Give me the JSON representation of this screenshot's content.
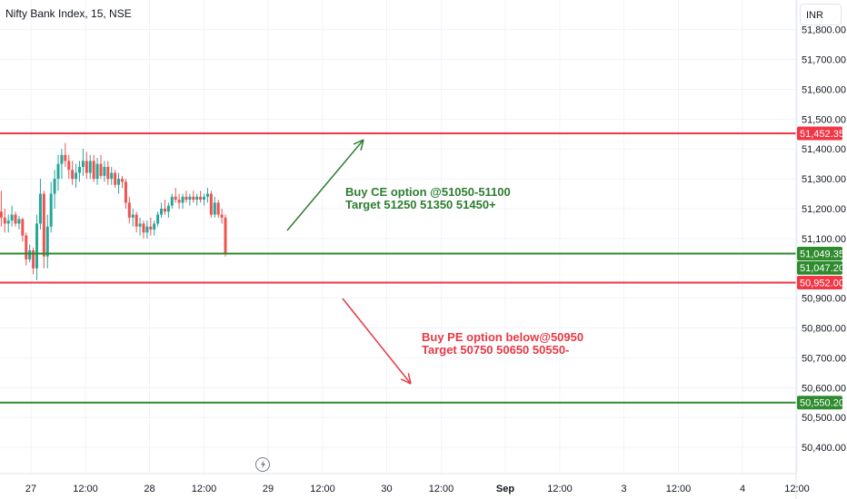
{
  "header": {
    "symbol_title": "Nifty Bank Index, 15, NSE"
  },
  "currency_button": {
    "label": "INR"
  },
  "colors": {
    "up": "#26a69a",
    "down": "#ef5350",
    "resistance": "#f23645",
    "support": "#2e8b2e",
    "grid": "#f0f3fa"
  },
  "chart_data": {
    "type": "candlestick",
    "y_ticks": [
      "51,800.00",
      "51,700.00",
      "51,600.00",
      "51,500.00",
      "51,400.00",
      "51,300.00",
      "51,200.00",
      "51,100.00",
      "50,900.00",
      "50,800.00",
      "50,700.00",
      "50,600.00",
      "50,500.00",
      "50,400.00"
    ],
    "y_tick_values": [
      51800,
      51700,
      51600,
      51500,
      51400,
      51300,
      51200,
      51100,
      50900,
      50800,
      50700,
      50600,
      50500,
      50400
    ],
    "x_ticks": [
      {
        "label": "27",
        "t": 0.0
      },
      {
        "label": "12:00",
        "t": 0.46
      },
      {
        "label": "28",
        "t": 1.0
      },
      {
        "label": "12:00",
        "t": 1.46
      },
      {
        "label": "29",
        "t": 2.0
      },
      {
        "label": "12:00",
        "t": 2.46
      },
      {
        "label": "30",
        "t": 3.0
      },
      {
        "label": "12:00",
        "t": 3.46
      },
      {
        "label": "Sep",
        "t": 4.0
      },
      {
        "label": "12:00",
        "t": 4.46
      },
      {
        "label": "3",
        "t": 5.0
      },
      {
        "label": "12:00",
        "t": 5.46
      },
      {
        "label": "4",
        "t": 6.0
      },
      {
        "label": "12:00",
        "t": 6.46
      }
    ],
    "ylim": [
      50340,
      51860
    ],
    "levels": [
      {
        "value": 51452.35,
        "label": "51,452.35",
        "kind": "resistance"
      },
      {
        "value": 51049.35,
        "label": "51,049.35",
        "kind": "support"
      },
      {
        "value": 51047.2,
        "label": "51,047.20",
        "kind": "last"
      },
      {
        "value": 50952.0,
        "label": "50,952.00",
        "kind": "resistance"
      },
      {
        "value": 50550.2,
        "label": "50,550.20",
        "kind": "support"
      }
    ],
    "candles": [
      [
        -0.25,
        51190,
        51260,
        51140,
        51170
      ],
      [
        -0.22,
        51170,
        51200,
        51120,
        51150
      ],
      [
        -0.19,
        51150,
        51180,
        51120,
        51160
      ],
      [
        -0.16,
        51160,
        51210,
        51140,
        51180
      ],
      [
        -0.13,
        51180,
        51190,
        51140,
        51150
      ],
      [
        -0.1,
        51150,
        51175,
        51130,
        51165
      ],
      [
        -0.07,
        51165,
        51170,
        51090,
        51110
      ],
      [
        -0.04,
        51110,
        51120,
        51010,
        51030
      ],
      [
        -0.01,
        51030,
        51080,
        51020,
        51060
      ],
      [
        0.02,
        51060,
        51070,
        50980,
        51000
      ],
      [
        0.05,
        51000,
        51180,
        50960,
        51150
      ],
      [
        0.08,
        51150,
        51300,
        51130,
        51250
      ],
      [
        0.11,
        51250,
        51260,
        51000,
        51040
      ],
      [
        0.14,
        51040,
        51180,
        51000,
        51140
      ],
      [
        0.17,
        51140,
        51290,
        51120,
        51250
      ],
      [
        0.2,
        51250,
        51330,
        51200,
        51300
      ],
      [
        0.23,
        51300,
        51380,
        51260,
        51350
      ],
      [
        0.26,
        51350,
        51400,
        51300,
        51380
      ],
      [
        0.29,
        51380,
        51420,
        51340,
        51360
      ],
      [
        0.32,
        51360,
        51380,
        51300,
        51330
      ],
      [
        0.35,
        51330,
        51360,
        51280,
        51300
      ],
      [
        0.38,
        51300,
        51350,
        51270,
        51320
      ],
      [
        0.41,
        51320,
        51360,
        51290,
        51340
      ],
      [
        0.44,
        51340,
        51400,
        51310,
        51360
      ],
      [
        0.47,
        51360,
        51390,
        51300,
        51320
      ],
      [
        0.5,
        51320,
        51380,
        51300,
        51360
      ],
      [
        0.53,
        51360,
        51380,
        51290,
        51300
      ],
      [
        0.56,
        51300,
        51370,
        51280,
        51350
      ],
      [
        0.59,
        51350,
        51380,
        51300,
        51310
      ],
      [
        0.62,
        51310,
        51360,
        51290,
        51340
      ],
      [
        0.65,
        51340,
        51360,
        51280,
        51300
      ],
      [
        0.68,
        51300,
        51340,
        51280,
        51320
      ],
      [
        0.71,
        51320,
        51330,
        51270,
        51280
      ],
      [
        0.74,
        51280,
        51320,
        51250,
        51300
      ],
      [
        0.77,
        51300,
        51310,
        51270,
        51290
      ],
      [
        0.8,
        51290,
        51300,
        51200,
        51220
      ],
      [
        0.83,
        51220,
        51240,
        51150,
        51170
      ],
      [
        0.86,
        51170,
        51200,
        51140,
        51180
      ],
      [
        0.89,
        51180,
        51190,
        51120,
        51140
      ],
      [
        0.92,
        51140,
        51170,
        51110,
        51150
      ],
      [
        0.95,
        51150,
        51160,
        51100,
        51120
      ],
      [
        0.98,
        51120,
        51160,
        51100,
        51140
      ],
      [
        1.01,
        51140,
        51170,
        51110,
        51130
      ],
      [
        1.04,
        51130,
        51160,
        51110,
        51150
      ],
      [
        1.07,
        51150,
        51190,
        51140,
        51180
      ],
      [
        1.1,
        51180,
        51220,
        51170,
        51200
      ],
      [
        1.13,
        51200,
        51230,
        51180,
        51190
      ],
      [
        1.16,
        51190,
        51220,
        51170,
        51210
      ],
      [
        1.19,
        51210,
        51250,
        51200,
        51240
      ],
      [
        1.22,
        51240,
        51270,
        51220,
        51230
      ],
      [
        1.25,
        51230,
        51250,
        51200,
        51220
      ],
      [
        1.28,
        51220,
        51250,
        51200,
        51240
      ],
      [
        1.31,
        51240,
        51260,
        51220,
        51230
      ],
      [
        1.34,
        51230,
        51250,
        51210,
        51240
      ],
      [
        1.37,
        51240,
        51260,
        51220,
        51230
      ],
      [
        1.4,
        51230,
        51250,
        51210,
        51240
      ],
      [
        1.43,
        51240,
        51260,
        51220,
        51230
      ],
      [
        1.46,
        51230,
        51250,
        51210,
        51240
      ],
      [
        1.49,
        51240,
        51270,
        51220,
        51250
      ],
      [
        1.52,
        51250,
        51260,
        51170,
        51180
      ],
      [
        1.55,
        51180,
        51240,
        51170,
        51220
      ],
      [
        1.58,
        51220,
        51230,
        51170,
        51180
      ],
      [
        1.61,
        51180,
        51200,
        51150,
        51170
      ],
      [
        1.64,
        51170,
        51180,
        51040,
        51050
      ]
    ],
    "annotations": [
      {
        "line1": "Buy CE option @51050-51100",
        "line2": "Target 51250 51350 51450+",
        "kind": "ce"
      },
      {
        "line1": "Buy PE option below@50950",
        "line2": "Target 50750 50650 50550-",
        "kind": "pe"
      }
    ]
  }
}
